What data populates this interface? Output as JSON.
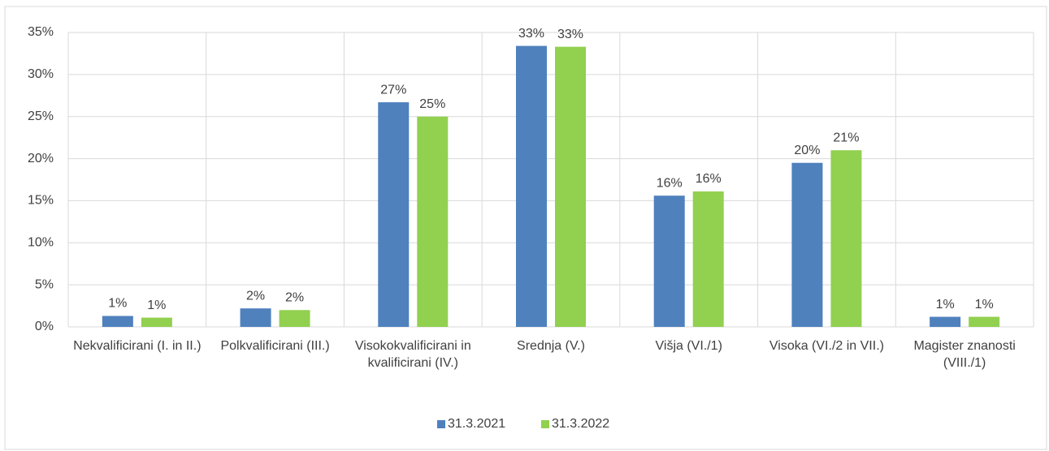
{
  "chart_data": {
    "type": "bar",
    "categories": [
      "Nekvalificirani (I. in II.)",
      "Polkvalificirani (III.)",
      "Visokokvalificirani in kvalificirani (IV.)",
      "Srednja (V.)",
      "Višja (VI./1)",
      "Visoka (VI./2 in VII.)",
      "Magister znanosti (VIII./1)"
    ],
    "series": [
      {
        "name": "31.3.2021",
        "color": "#4f81bd",
        "values": [
          1.3,
          2.2,
          26.7,
          33.4,
          15.6,
          19.5,
          1.2
        ],
        "value_labels": [
          "1%",
          "2%",
          "27%",
          "33%",
          "16%",
          "20%",
          "1%"
        ]
      },
      {
        "name": "31.3.2022",
        "color": "#92d050",
        "values": [
          1.1,
          2.0,
          25.0,
          33.3,
          16.1,
          21.0,
          1.2
        ],
        "value_labels": [
          "1%",
          "2%",
          "25%",
          "33%",
          "16%",
          "21%",
          "1%"
        ]
      }
    ],
    "ylim": [
      0,
      35
    ],
    "yticks": [
      {
        "value": 0,
        "label": "0%"
      },
      {
        "value": 5,
        "label": "5%"
      },
      {
        "value": 10,
        "label": "10%"
      },
      {
        "value": 15,
        "label": "15%"
      },
      {
        "value": 20,
        "label": "20%"
      },
      {
        "value": 25,
        "label": "25%"
      },
      {
        "value": 30,
        "label": "30%"
      },
      {
        "value": 35,
        "label": "35%"
      }
    ],
    "grid": true,
    "legend": "bottom"
  }
}
